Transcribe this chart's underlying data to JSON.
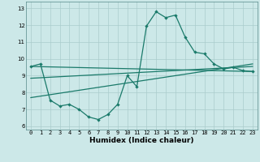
{
  "xlabel": "Humidex (Indice chaleur)",
  "ylabel": "",
  "bg_color": "#cce8e8",
  "grid_color": "#aacccc",
  "line_color": "#1a7a6a",
  "xlim": [
    -0.5,
    23.5
  ],
  "ylim": [
    5.8,
    13.4
  ],
  "yticks": [
    6,
    7,
    8,
    9,
    10,
    11,
    12,
    13
  ],
  "xticks": [
    0,
    1,
    2,
    3,
    4,
    5,
    6,
    7,
    8,
    9,
    10,
    11,
    12,
    13,
    14,
    15,
    16,
    17,
    18,
    19,
    20,
    21,
    22,
    23
  ],
  "series1_x": [
    0,
    1,
    2,
    3,
    4,
    5,
    6,
    7,
    8,
    9,
    10,
    11,
    12,
    13,
    14,
    15,
    16,
    17,
    18,
    19,
    20,
    21,
    22,
    23
  ],
  "series1_y": [
    9.55,
    9.7,
    7.55,
    7.2,
    7.3,
    7.0,
    6.55,
    6.4,
    6.7,
    7.3,
    9.0,
    8.35,
    11.95,
    12.8,
    12.45,
    12.6,
    11.3,
    10.4,
    10.3,
    9.7,
    9.4,
    9.5,
    9.3,
    9.25
  ],
  "series2_x": [
    0,
    23
  ],
  "series2_y": [
    9.55,
    9.25
  ],
  "series3_x": [
    0,
    23
  ],
  "series3_y": [
    8.85,
    9.55
  ],
  "series4_x": [
    0,
    23
  ],
  "series4_y": [
    7.7,
    9.7
  ],
  "marker_size": 2.2,
  "line_width": 0.9,
  "tick_fontsize": 5.0,
  "xlabel_fontsize": 6.5
}
